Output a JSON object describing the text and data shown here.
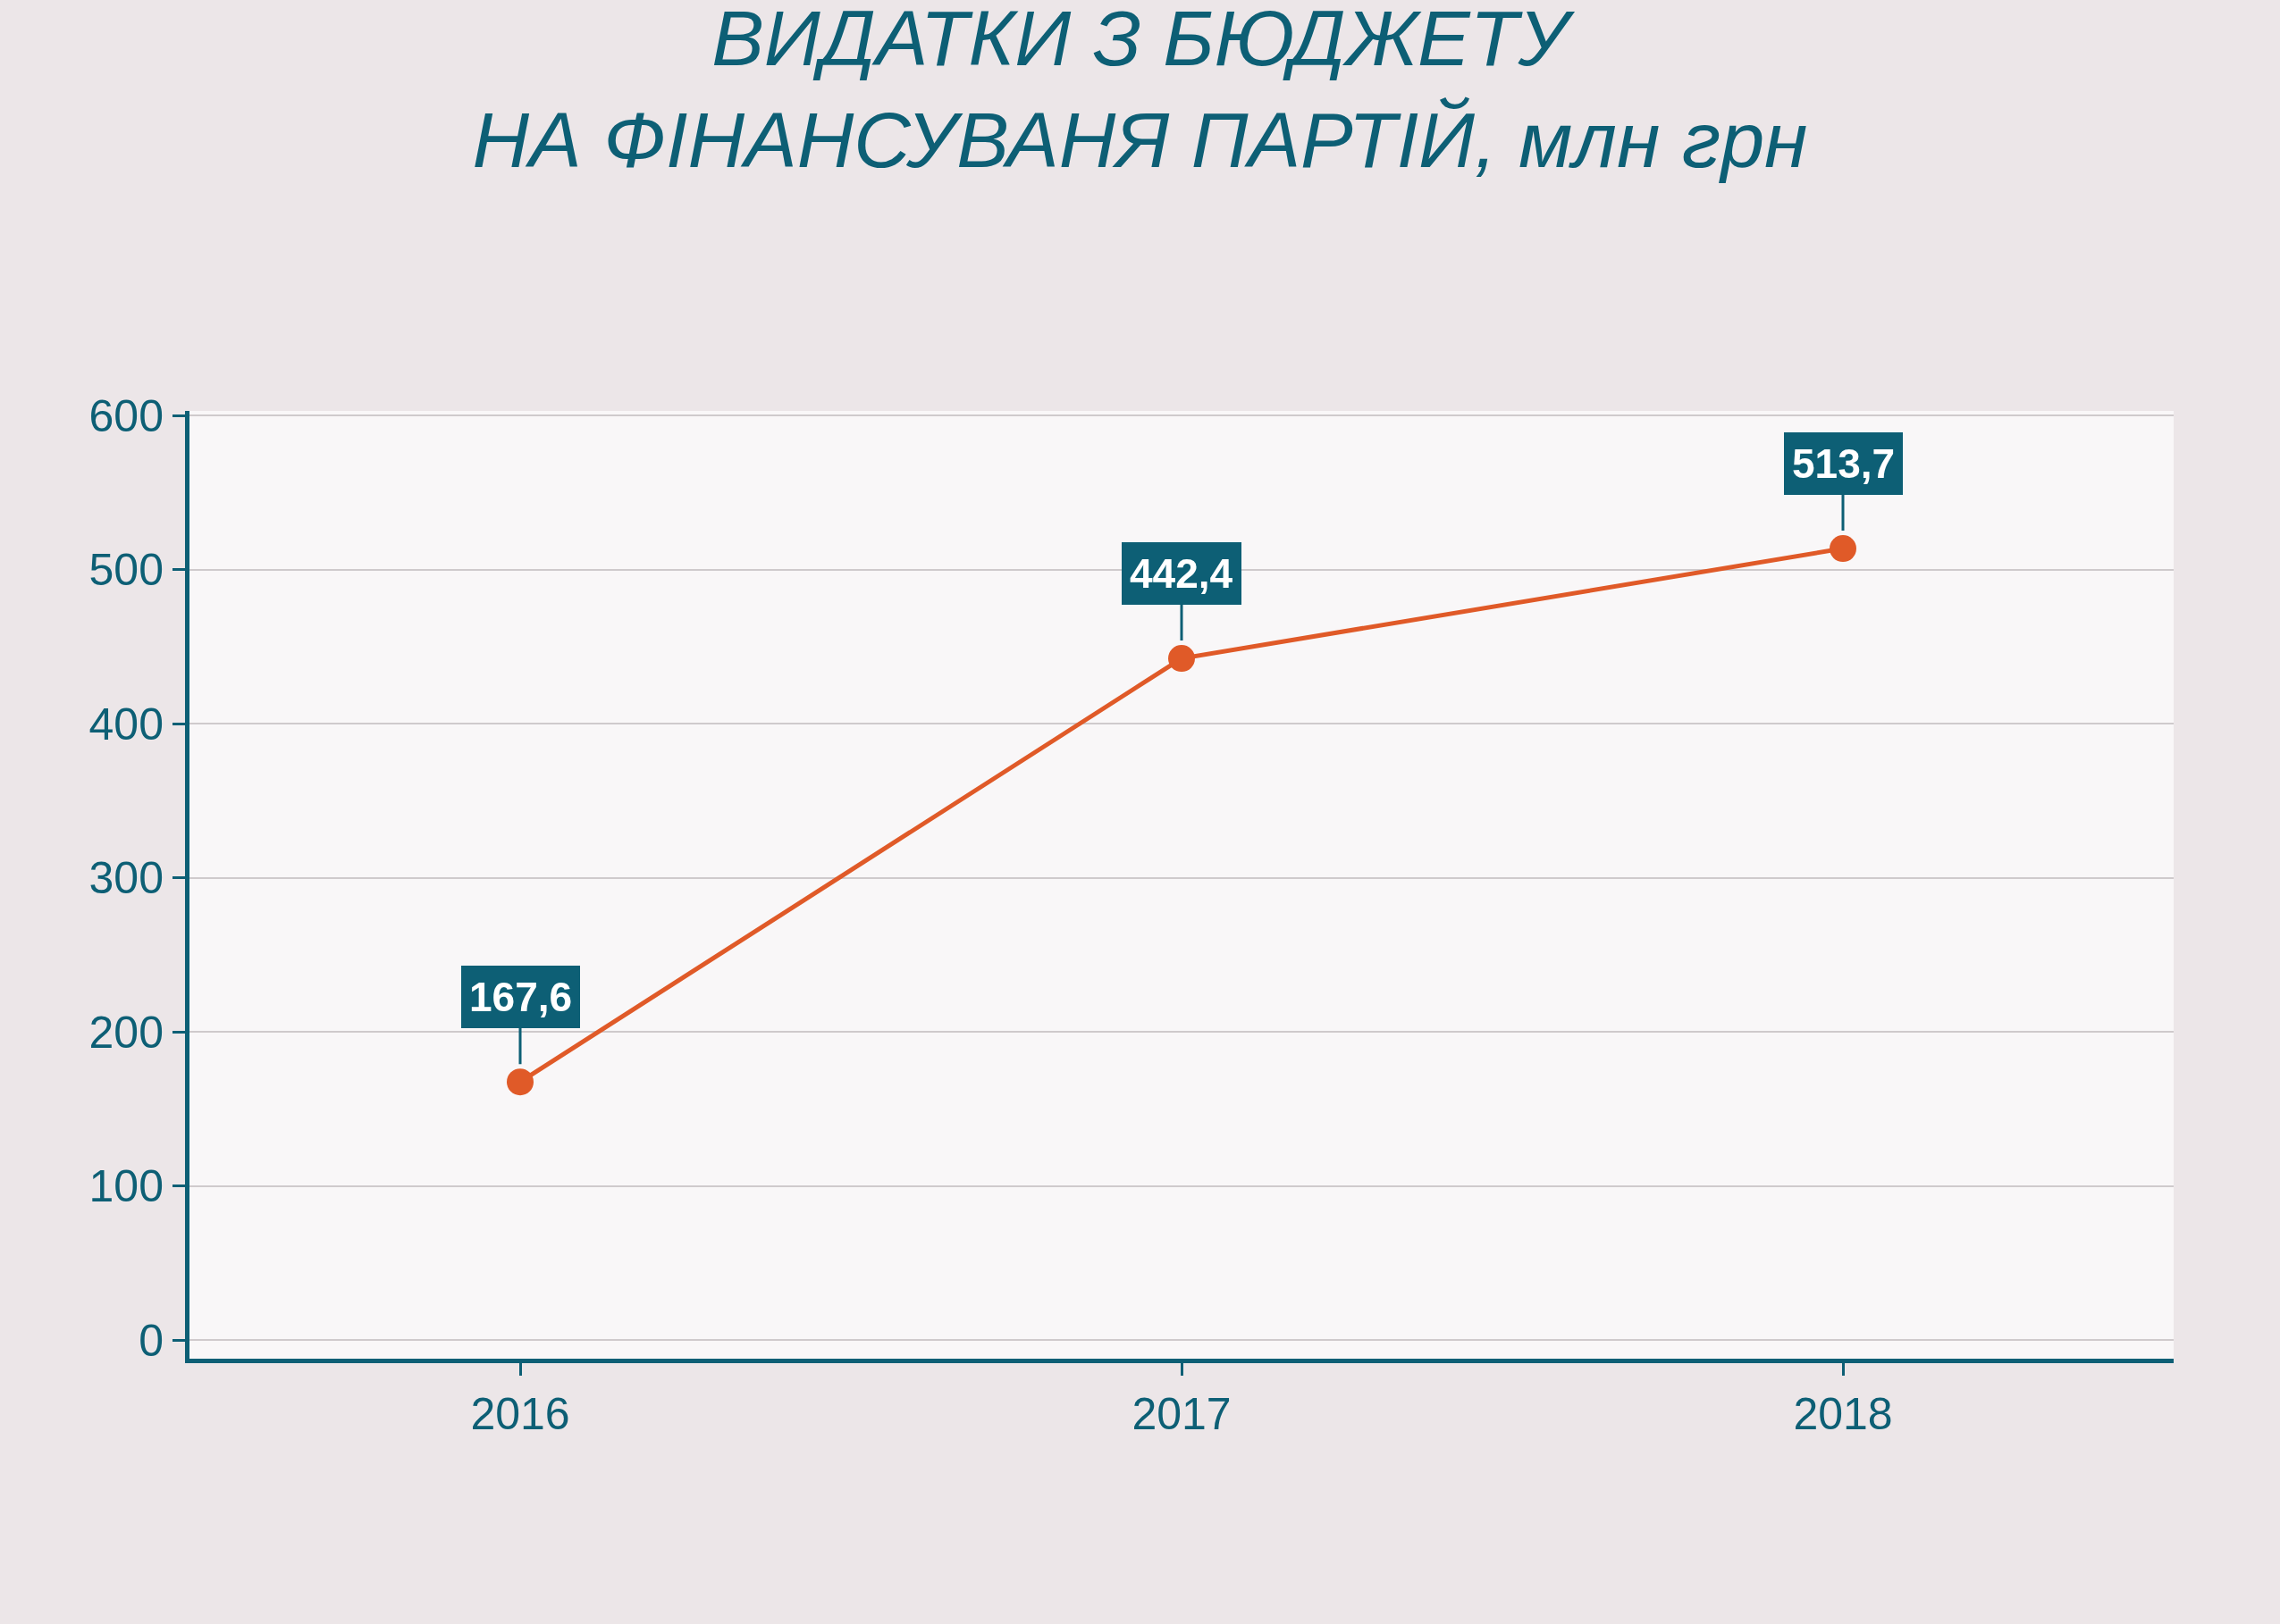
{
  "chart_data": {
    "type": "line",
    "title": "ВИДАТКИ З БЮДЖЕТУ\nНА ФІНАНСУВАНЯ ПАРТІЙ, млн грн",
    "categories": [
      "2016",
      "2017",
      "2018"
    ],
    "series": [
      {
        "color": "#e05a28",
        "values": [
          167.6,
          442.4,
          513.7
        ]
      }
    ],
    "value_labels": [
      "167,6",
      "442,4",
      "513,7"
    ],
    "ylim": [
      -12,
      603
    ],
    "yticks": [
      0,
      100,
      200,
      300,
      400,
      500,
      600
    ],
    "grid": "y",
    "marker": "circle",
    "line_style": "solid",
    "legend": false
  }
}
